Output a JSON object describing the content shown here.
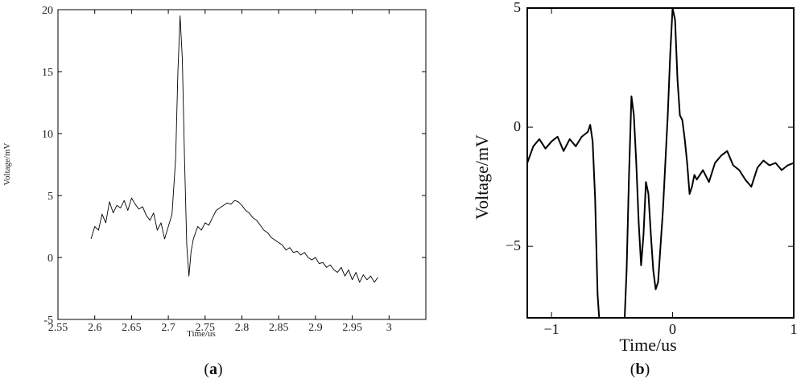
{
  "chart_data": [
    {
      "type": "line",
      "caption": {
        "open": "(",
        "letter": "a",
        "close": ")"
      },
      "xlabel": "Time/us",
      "ylabel": "Voltage/mV",
      "xlim": [
        2.55,
        3.05
      ],
      "ylim": [
        -5,
        20
      ],
      "xticks": [
        "2.55",
        "2.6",
        "2.65",
        "2.7",
        "2.75",
        "2.8",
        "2.85",
        "2.9",
        "2.95",
        "3"
      ],
      "yticks": [
        "-5",
        "0",
        "5",
        "10",
        "15",
        "20"
      ],
      "grid": false,
      "series": [
        {
          "color": "#000000",
          "x": [
            2.595,
            2.6,
            2.605,
            2.61,
            2.615,
            2.62,
            2.625,
            2.63,
            2.635,
            2.64,
            2.645,
            2.65,
            2.655,
            2.66,
            2.665,
            2.67,
            2.675,
            2.68,
            2.685,
            2.69,
            2.695,
            2.7,
            2.705,
            2.71,
            2.713,
            2.716,
            2.719,
            2.722,
            2.725,
            2.728,
            2.731,
            2.734,
            2.737,
            2.74,
            2.745,
            2.75,
            2.755,
            2.76,
            2.765,
            2.77,
            2.775,
            2.78,
            2.785,
            2.79,
            2.795,
            2.8,
            2.805,
            2.81,
            2.815,
            2.82,
            2.825,
            2.83,
            2.835,
            2.84,
            2.845,
            2.85,
            2.855,
            2.86,
            2.865,
            2.87,
            2.875,
            2.88,
            2.885,
            2.89,
            2.895,
            2.9,
            2.905,
            2.91,
            2.915,
            2.92,
            2.925,
            2.93,
            2.935,
            2.94,
            2.945,
            2.95,
            2.955,
            2.96,
            2.965,
            2.97,
            2.975,
            2.98,
            2.985
          ],
          "y": [
            1.5,
            2.5,
            2.2,
            3.5,
            2.8,
            4.5,
            3.6,
            4.2,
            4.0,
            4.6,
            3.8,
            4.8,
            4.3,
            3.9,
            4.1,
            3.4,
            3.0,
            3.6,
            2.2,
            2.8,
            1.5,
            2.5,
            3.5,
            8.0,
            15.0,
            19.5,
            16.0,
            8.0,
            1.0,
            -1.5,
            0.5,
            1.5,
            2.0,
            2.5,
            2.2,
            2.8,
            2.6,
            3.2,
            3.8,
            4.0,
            4.2,
            4.4,
            4.3,
            4.6,
            4.5,
            4.2,
            3.8,
            3.6,
            3.2,
            3.0,
            2.6,
            2.2,
            2.0,
            1.6,
            1.4,
            1.2,
            1.0,
            0.6,
            0.8,
            0.4,
            0.5,
            0.2,
            0.4,
            0.0,
            -0.2,
            0.0,
            -0.5,
            -0.4,
            -0.8,
            -0.6,
            -1.0,
            -1.2,
            -0.8,
            -1.5,
            -1.0,
            -1.8,
            -1.2,
            -2.0,
            -1.4,
            -1.8,
            -1.5,
            -2.0,
            -1.6
          ]
        }
      ]
    },
    {
      "type": "line",
      "caption": {
        "open": "(",
        "letter": "b",
        "close": ")"
      },
      "xlabel": "Time/us",
      "ylabel": "Voltage/mV",
      "xlim": [
        -1.2,
        1.0
      ],
      "ylim": [
        -8,
        5
      ],
      "xticks": [
        "−1",
        "0",
        "1"
      ],
      "yticks": [
        "−5",
        "0",
        "5"
      ],
      "grid": false,
      "series": [
        {
          "color": "#000000",
          "x": [
            -1.2,
            -1.15,
            -1.1,
            -1.05,
            -1.0,
            -0.95,
            -0.9,
            -0.85,
            -0.8,
            -0.75,
            -0.7,
            -0.68,
            -0.66,
            -0.64,
            -0.62,
            -0.6,
            -0.55,
            -0.5,
            -0.45,
            -0.4,
            -0.38,
            -0.36,
            -0.34,
            -0.32,
            -0.3,
            -0.28,
            -0.26,
            -0.24,
            -0.22,
            -0.2,
            -0.18,
            -0.16,
            -0.14,
            -0.12,
            -0.1,
            -0.08,
            -0.06,
            -0.04,
            -0.02,
            0.0,
            0.02,
            0.04,
            0.06,
            0.08,
            0.1,
            0.12,
            0.14,
            0.16,
            0.18,
            0.2,
            0.25,
            0.3,
            0.35,
            0.4,
            0.45,
            0.5,
            0.55,
            0.6,
            0.65,
            0.7,
            0.75,
            0.8,
            0.85,
            0.9,
            0.95,
            1.0
          ],
          "y": [
            -1.5,
            -0.8,
            -0.5,
            -0.9,
            -0.6,
            -0.4,
            -1.0,
            -0.5,
            -0.8,
            -0.4,
            -0.2,
            0.1,
            -0.6,
            -3.0,
            -7.0,
            -8.5,
            -8.5,
            -8.5,
            -8.5,
            -8.5,
            -6.0,
            -2.0,
            1.3,
            0.5,
            -1.5,
            -4.0,
            -5.8,
            -4.5,
            -2.3,
            -2.8,
            -4.5,
            -6.0,
            -6.8,
            -6.5,
            -5.0,
            -3.5,
            -1.5,
            0.5,
            3.0,
            5.0,
            4.5,
            2.0,
            0.5,
            0.3,
            -0.5,
            -1.5,
            -2.8,
            -2.5,
            -2.0,
            -2.2,
            -1.8,
            -2.3,
            -1.5,
            -1.2,
            -1.0,
            -1.6,
            -1.8,
            -2.2,
            -2.5,
            -1.7,
            -1.4,
            -1.6,
            -1.5,
            -1.8,
            -1.6,
            -1.5
          ]
        }
      ]
    }
  ]
}
